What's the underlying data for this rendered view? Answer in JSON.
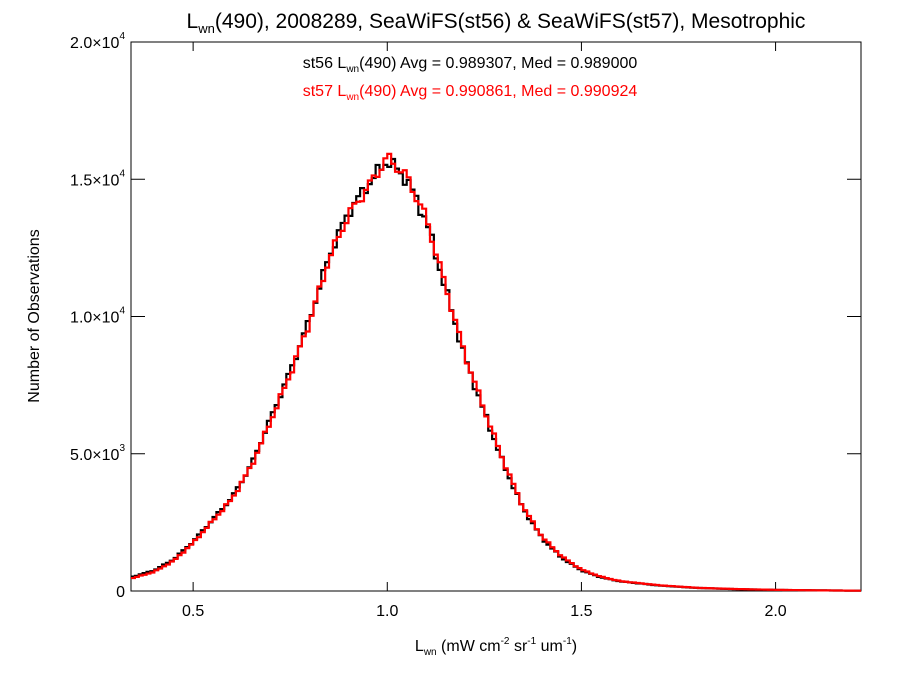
{
  "chart_data": {
    "type": "line",
    "title": {
      "main": "L",
      "sub": "wn",
      "rest": "(490), 2008289, SeaWiFS(st56) & SeaWiFS(st57), Mesotrophic"
    },
    "xlabel": {
      "main": "L",
      "sub": "wn",
      "rest": " (mW cm",
      "sup1": "-2",
      "mid1": " sr",
      "sup2": "-1",
      "mid2": " um",
      "sup3": "-1",
      "end": ")"
    },
    "ylabel": "Number of Observations",
    "xlim": [
      0.34,
      2.22
    ],
    "ylim": [
      0,
      20000
    ],
    "x_ticks": [
      {
        "value": 0.5,
        "label": "0.5"
      },
      {
        "value": 1.0,
        "label": "1.0"
      },
      {
        "value": 1.5,
        "label": "1.5"
      },
      {
        "value": 2.0,
        "label": "2.0"
      }
    ],
    "y_ticks": [
      {
        "value": 0,
        "label": "0",
        "mant": "",
        "exp": ""
      },
      {
        "value": 5000,
        "label": "",
        "mant": "5.0×10",
        "exp": "3"
      },
      {
        "value": 10000,
        "label": "",
        "mant": "1.0×10",
        "exp": "4"
      },
      {
        "value": 15000,
        "label": "",
        "mant": "1.5×10",
        "exp": "4"
      },
      {
        "value": 20000,
        "label": "",
        "mant": "2.0×10",
        "exp": "4"
      }
    ],
    "legend_placement": "top-center",
    "series": [
      {
        "name": "st56",
        "color": "#000000",
        "stats": {
          "prefix": "st56 L",
          "sub": "wn",
          "text": "(490) Avg = 0.989307, Med = 0.989000"
        },
        "x": [
          0.34,
          0.4,
          0.45,
          0.5,
          0.55,
          0.6,
          0.65,
          0.7,
          0.75,
          0.8,
          0.85,
          0.9,
          0.95,
          1.0,
          1.05,
          1.1,
          1.15,
          1.2,
          1.25,
          1.3,
          1.35,
          1.4,
          1.45,
          1.5,
          1.55,
          1.6,
          1.7,
          1.8,
          1.9,
          2.0,
          2.1,
          2.22
        ],
        "y": [
          500,
          750,
          1150,
          1800,
          2600,
          3400,
          4600,
          6300,
          8000,
          9900,
          12200,
          13800,
          14800,
          15700,
          15000,
          13500,
          11000,
          8500,
          6500,
          4600,
          3000,
          1900,
          1200,
          750,
          500,
          350,
          200,
          110,
          65,
          40,
          25,
          10
        ]
      },
      {
        "name": "st57",
        "color": "#ff0000",
        "stats": {
          "prefix": "st57 L",
          "sub": "wn",
          "text": "(490) Avg = 0.990861, Med = 0.990924"
        },
        "x": [
          0.34,
          0.4,
          0.45,
          0.5,
          0.55,
          0.6,
          0.65,
          0.7,
          0.75,
          0.8,
          0.85,
          0.9,
          0.95,
          1.0,
          1.05,
          1.1,
          1.15,
          1.2,
          1.25,
          1.3,
          1.35,
          1.4,
          1.45,
          1.5,
          1.55,
          1.6,
          1.7,
          1.8,
          1.9,
          2.0,
          2.1,
          2.22
        ],
        "y": [
          450,
          700,
          1100,
          1750,
          2550,
          3350,
          4550,
          6200,
          7900,
          9800,
          12100,
          13700,
          14700,
          15800,
          15100,
          13600,
          11100,
          8600,
          6600,
          4700,
          3050,
          1950,
          1250,
          780,
          520,
          360,
          210,
          115,
          70,
          42,
          26,
          10
        ]
      }
    ]
  }
}
